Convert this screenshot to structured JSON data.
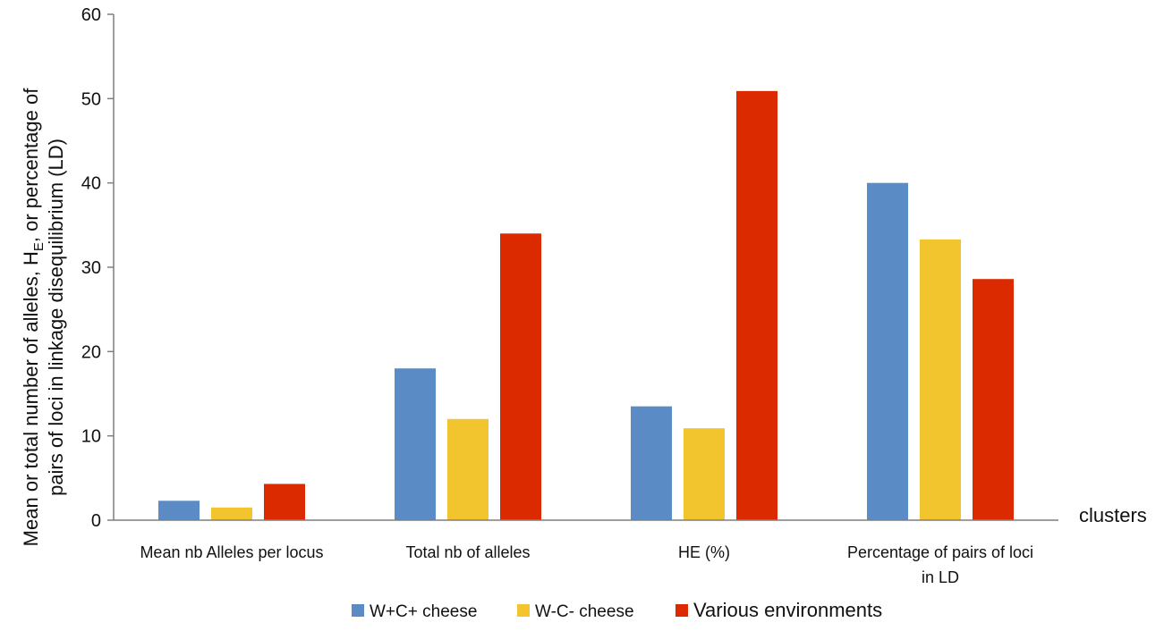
{
  "chart_data": {
    "type": "bar",
    "title": "",
    "ylabel_line1_prefix": "Mean or total number of alleles, H",
    "ylabel_line1_sub": "E",
    "ylabel_line1_suffix": ", or percentage of",
    "ylabel_line2": "pairs of loci in linkage disequilibrium (LD)",
    "xlabel": "clusters",
    "ylim": [
      0,
      60
    ],
    "yticks": [
      "0",
      "10",
      "20",
      "30",
      "40",
      "50",
      "60"
    ],
    "ytick_values": [
      0,
      10,
      20,
      30,
      40,
      50,
      60
    ],
    "grid": false,
    "legend_position": "bottom",
    "categories": [
      {
        "lines": [
          "Mean nb Alleles per locus"
        ]
      },
      {
        "lines": [
          "Total nb of alleles"
        ]
      },
      {
        "lines": [
          "HE (%)"
        ]
      },
      {
        "lines": [
          "Percentage of pairs of loci",
          "in LD"
        ]
      }
    ],
    "series": [
      {
        "name": "W+C+ cheese",
        "color": "#5b8bc4",
        "values": [
          2.3,
          18,
          13.5,
          40
        ]
      },
      {
        "name": "W-C- cheese",
        "color": "#f2c42e",
        "values": [
          1.5,
          12,
          10.9,
          33.3
        ]
      },
      {
        "name": "Various environments",
        "color": "#dc2a00",
        "values": [
          4.3,
          34,
          50.9,
          28.6
        ]
      }
    ]
  }
}
